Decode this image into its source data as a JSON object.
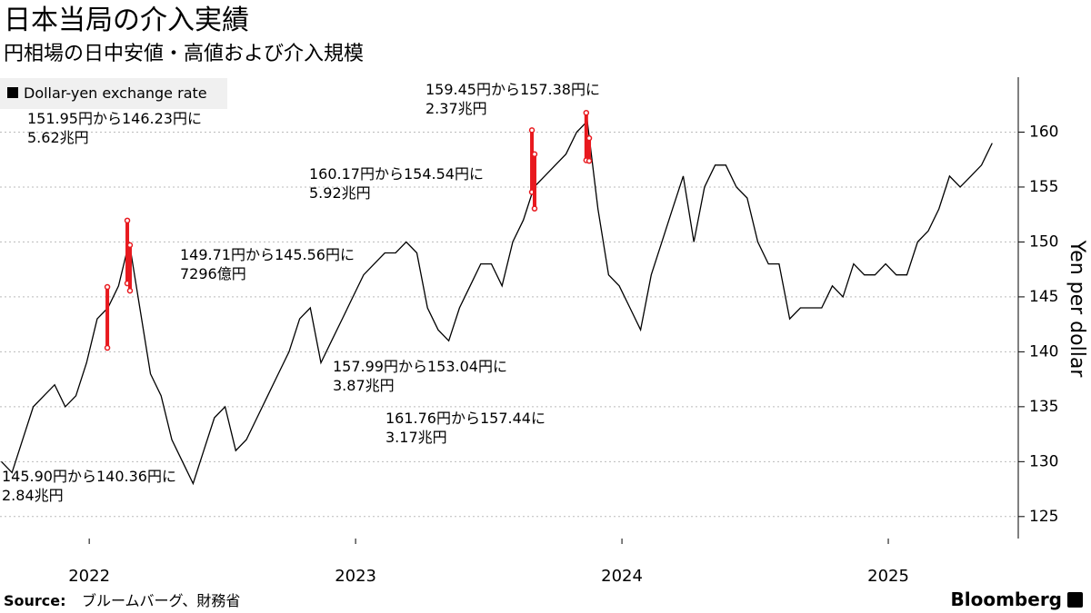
{
  "chart_data": {
    "type": "line",
    "title": "日本当局の介入実績",
    "subtitle": "円相場の日中安値・高値および介入規模",
    "y_label": "Yen per dollar",
    "source_label": "Source:",
    "source": "ブルームバーグ、財務省",
    "logo": "Bloomberg",
    "x": [
      2021.67,
      2021.71,
      2021.75,
      2021.79,
      2021.83,
      2021.87,
      2021.91,
      2021.95,
      2021.99,
      2022.03,
      2022.07,
      2022.11,
      2022.15,
      2022.19,
      2022.23,
      2022.27,
      2022.31,
      2022.35,
      2022.39,
      2022.43,
      2022.47,
      2022.51,
      2022.55,
      2022.59,
      2022.63,
      2022.67,
      2022.71,
      2022.75,
      2022.79,
      2022.83,
      2022.87,
      2022.91,
      2022.95,
      2022.99,
      2023.03,
      2023.07,
      2023.11,
      2023.15,
      2023.19,
      2023.23,
      2023.27,
      2023.31,
      2023.35,
      2023.39,
      2023.43,
      2023.47,
      2023.51,
      2023.55,
      2023.59,
      2023.63,
      2023.67,
      2023.71,
      2023.75,
      2023.79,
      2023.83,
      2023.87,
      2023.91,
      2023.95,
      2023.99,
      2024.03,
      2024.07,
      2024.11,
      2024.15,
      2024.19,
      2024.23,
      2024.27,
      2024.31,
      2024.35,
      2024.39,
      2024.43,
      2024.47,
      2024.51,
      2024.55,
      2024.59,
      2024.63,
      2024.67,
      2024.71,
      2024.75,
      2024.79,
      2024.83,
      2024.87,
      2024.91,
      2024.95,
      2024.99,
      2025.03,
      2025.07,
      2025.11,
      2025.15,
      2025.19,
      2025.23,
      2025.27,
      2025.31,
      2025.35,
      2025.39
    ],
    "series": [
      {
        "name": "Dollar-yen exchange rate",
        "color": "#000000",
        "values": [
          130,
          129,
          132,
          135,
          136,
          137,
          135,
          136,
          139,
          143,
          144,
          146,
          150,
          144,
          138,
          136,
          132,
          130,
          128,
          131,
          134,
          135,
          131,
          132,
          134,
          136,
          138,
          140,
          143,
          144,
          139,
          141,
          143,
          145,
          147,
          148,
          149,
          149,
          150,
          149,
          144,
          142,
          141,
          144,
          146,
          148,
          148,
          146,
          150,
          152,
          155,
          156,
          157,
          158,
          160,
          161,
          153,
          147,
          146,
          144,
          142,
          147,
          150,
          153,
          156,
          150,
          155,
          157,
          157,
          155,
          154,
          150,
          148,
          148,
          143,
          144,
          144,
          144,
          146,
          145,
          148,
          147,
          147,
          148,
          147,
          147,
          150,
          151,
          153,
          156,
          155,
          156,
          157,
          159
        ]
      }
    ],
    "interventions": [
      {
        "x": 2022.068,
        "high": 145.9,
        "low": 140.36,
        "label": [
          "145.90円から140.36円に",
          "2.84兆円"
        ]
      },
      {
        "x": 2022.143,
        "high": 151.95,
        "low": 146.23,
        "label": [
          "151.95円から146.23円に",
          "5.62兆円"
        ]
      },
      {
        "x": 2022.153,
        "high": 149.71,
        "low": 145.56,
        "label": [
          "149.71円から145.56円に",
          "7296億円"
        ]
      },
      {
        "x": 2023.662,
        "high": 160.17,
        "low": 154.54,
        "label": [
          "160.17円から154.54円に",
          "5.92兆円"
        ]
      },
      {
        "x": 2023.672,
        "high": 157.99,
        "low": 153.04,
        "label": [
          "157.99円から153.04円に",
          "3.87兆円"
        ]
      },
      {
        "x": 2023.866,
        "high": 161.76,
        "low": 157.44,
        "label": [
          "161.76円から157.44に",
          "3.17兆円"
        ]
      },
      {
        "x": 2023.877,
        "high": 159.45,
        "low": 157.38,
        "label": [
          "159.45円から157.38円に",
          "2.37兆円"
        ]
      }
    ],
    "intervention_color": "#e8191e",
    "xlim": [
      2021.665,
      2025.488
    ],
    "xticks": [
      2022,
      2023,
      2024,
      2025
    ],
    "ylim": [
      123,
      165
    ],
    "yticks": [
      125,
      130,
      135,
      140,
      145,
      150,
      155,
      160
    ],
    "grid": true
  }
}
